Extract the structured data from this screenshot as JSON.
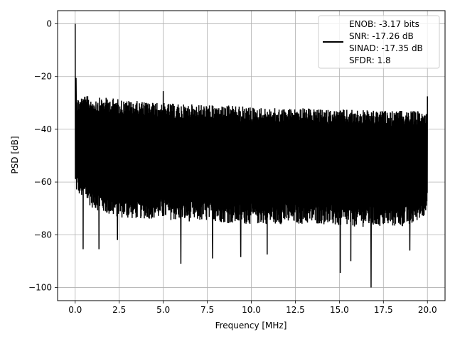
{
  "chart_data": {
    "type": "line",
    "title": "",
    "xlabel": "Frequency [MHz]",
    "ylabel": "PSD [dB]",
    "xlim": [
      -1.0,
      21.0
    ],
    "ylim": [
      -105,
      5
    ],
    "x_ticks": [
      0.0,
      2.5,
      5.0,
      7.5,
      10.0,
      12.5,
      15.0,
      17.5,
      20.0
    ],
    "x_tick_labels": [
      "0.0",
      "2.5",
      "5.0",
      "7.5",
      "10.0",
      "12.5",
      "15.0",
      "17.5",
      "20.0"
    ],
    "y_ticks": [
      0,
      -20,
      -40,
      -60,
      -80,
      -100
    ],
    "y_tick_labels": [
      "0",
      "−20",
      "−40",
      "−60",
      "−80",
      "−100"
    ],
    "grid": true,
    "legend_position": "top-right",
    "line_color": "#000000",
    "series": [
      {
        "name": "ENOB: -3.17 bits\nSNR: -17.26 dB\nSINAD: -17.35 dB\nSFDR: 1.8",
        "x_range": [
          0.0,
          20.0
        ],
        "envelope": {
          "x": [
            0.05,
            0.5,
            1,
            2,
            3,
            4,
            5,
            6,
            7,
            8,
            9,
            10,
            11,
            12,
            13,
            14,
            15,
            16,
            17,
            18,
            19,
            19.95
          ],
          "upper": [
            -28,
            -27,
            -28,
            -28,
            -29,
            -29.5,
            -30,
            -30.5,
            -30.5,
            -31,
            -31,
            -31.5,
            -32,
            -32,
            -32,
            -32.5,
            -32.5,
            -32.5,
            -33,
            -33,
            -33,
            -33
          ],
          "lower": [
            -64,
            -67,
            -70,
            -73,
            -74,
            -74,
            -74,
            -75,
            -75,
            -75,
            -76,
            -76,
            -76,
            -76,
            -76,
            -76,
            -77,
            -77,
            -77,
            -77,
            -77,
            -72
          ]
        },
        "peaks": [
          {
            "x": 0.0,
            "y": 0.0
          },
          {
            "x": 0.05,
            "y": -20.5
          },
          {
            "x": 5.0,
            "y": -25.5
          },
          {
            "x": 20.0,
            "y": -27.5
          }
        ],
        "dips": [
          {
            "x": 0.45,
            "y": -85.5
          },
          {
            "x": 1.35,
            "y": -85.5
          },
          {
            "x": 2.4,
            "y": -82
          },
          {
            "x": 6.0,
            "y": -91
          },
          {
            "x": 7.8,
            "y": -89
          },
          {
            "x": 9.4,
            "y": -88.5
          },
          {
            "x": 10.9,
            "y": -87.5
          },
          {
            "x": 15.05,
            "y": -94.5
          },
          {
            "x": 15.65,
            "y": -90
          },
          {
            "x": 16.8,
            "y": -100
          },
          {
            "x": 19.0,
            "y": -86
          }
        ]
      }
    ]
  },
  "legend": {
    "lines": [
      "ENOB: -3.17 bits",
      "SNR: -17.26 dB",
      "SINAD: -17.35 dB",
      "SFDR: 1.8"
    ]
  }
}
